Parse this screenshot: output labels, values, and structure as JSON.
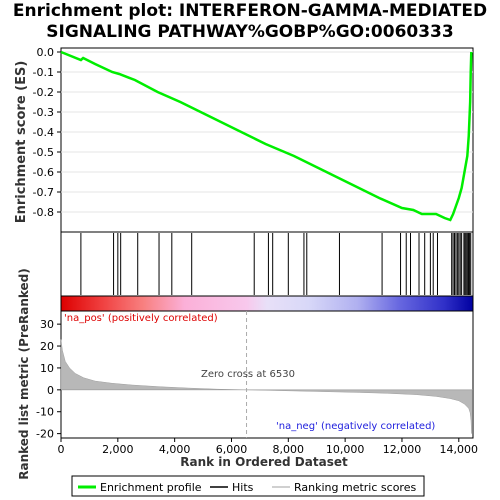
{
  "title_lines": [
    "Enrichment plot: INTERFERON-GAMMA-MEDIATED",
    "SIGNALING PATHWAY%GOBP%GO:0060333"
  ],
  "chart_data": [
    {
      "type": "line",
      "name": "es-panel",
      "ylabel": "Enrichment score (ES)",
      "ylim": [
        -0.9,
        0.02
      ],
      "yticks": [
        0.0,
        -0.1,
        -0.2,
        -0.3,
        -0.4,
        -0.5,
        -0.6,
        -0.7,
        -0.8
      ],
      "xlim": [
        0,
        14500
      ],
      "series": [
        {
          "name": "Enrichment profile",
          "color": "#00ee00",
          "x": [
            0,
            700,
            780,
            1200,
            1800,
            2050,
            2600,
            3400,
            4200,
            5200,
            6200,
            7200,
            8200,
            9200,
            10200,
            11200,
            12000,
            12400,
            12700,
            13200,
            13500,
            13700,
            13800,
            13900,
            14000,
            14100,
            14200,
            14300,
            14350,
            14400,
            14420,
            14440
          ],
          "y": [
            0.0,
            -0.04,
            -0.03,
            -0.06,
            -0.1,
            -0.11,
            -0.14,
            -0.2,
            -0.25,
            -0.32,
            -0.39,
            -0.46,
            -0.52,
            -0.59,
            -0.66,
            -0.73,
            -0.78,
            -0.79,
            -0.81,
            -0.81,
            -0.83,
            -0.84,
            -0.81,
            -0.77,
            -0.73,
            -0.68,
            -0.6,
            -0.52,
            -0.42,
            -0.25,
            -0.1,
            0.0
          ]
        }
      ]
    },
    {
      "type": "barcode",
      "name": "hits-panel",
      "series": [
        {
          "name": "Hits",
          "color": "#000000",
          "x": [
            700,
            1850,
            2000,
            2100,
            2700,
            3450,
            3900,
            4600,
            6800,
            7300,
            7450,
            8000,
            8550,
            8650,
            9800,
            11300,
            11950,
            12150,
            12300,
            12600,
            12800,
            13000,
            13100,
            13250,
            13750,
            13800,
            13850,
            13900,
            13950,
            14000,
            14050,
            14100,
            14180,
            14220,
            14260,
            14300,
            14340,
            14380,
            14420
          ]
        }
      ]
    },
    {
      "type": "area",
      "name": "ranked-metric-panel",
      "ylabel": "Ranked list metric (PreRanked)",
      "xlabel": "Rank in Ordered Dataset",
      "ylim": [
        -22,
        36
      ],
      "yticks": [
        30,
        20,
        10,
        0,
        -10,
        -20
      ],
      "xticks": [
        0,
        2000,
        4000,
        6000,
        8000,
        10000,
        12000,
        14000
      ],
      "xticklabels": [
        "0",
        "2,000",
        "4,000",
        "6,000",
        "8,000",
        "10,000",
        "12,000",
        "14,000"
      ],
      "xlim": [
        0,
        14500
      ],
      "series": [
        {
          "name": "Ranking metric scores",
          "color": "#c0c0c0",
          "x": [
            0,
            50,
            150,
            300,
            500,
            800,
            1200,
            1800,
            2500,
            3500,
            4500,
            5500,
            6530,
            7500,
            8500,
            9500,
            10500,
            11500,
            12500,
            13200,
            13700,
            14000,
            14200,
            14350,
            14400,
            14430,
            14450
          ],
          "y": [
            23,
            18,
            13,
            10,
            7.5,
            5.5,
            4,
            3,
            2.2,
            1.4,
            0.8,
            0.3,
            0.0,
            -0.3,
            -0.6,
            -0.9,
            -1.2,
            -1.6,
            -2.2,
            -3.0,
            -4.0,
            -5.0,
            -6.5,
            -8.5,
            -10.5,
            -14,
            -20
          ]
        }
      ],
      "annotations": [
        "Zero cross at 6530",
        "'na_pos' (positively correlated)",
        "'na_neg' (negatively correlated)"
      ],
      "zero_cross": 6530
    }
  ],
  "legend": {
    "items": [
      {
        "label": "Enrichment profile",
        "color": "#00ee00"
      },
      {
        "label": "Hits",
        "color": "#000000"
      },
      {
        "label": "Ranking metric scores",
        "color": "#c0c0c0"
      }
    ]
  }
}
